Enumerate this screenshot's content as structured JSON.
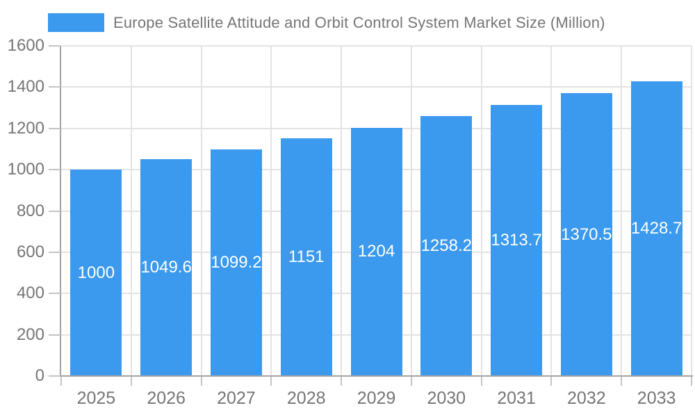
{
  "legend": {
    "label": "Europe Satellite Attitude and Orbit Control System Market Size (Million)"
  },
  "chart_data": {
    "type": "bar",
    "title": "Europe Satellite Attitude and Orbit Control System Market Size (Million)",
    "categories": [
      "2025",
      "2026",
      "2027",
      "2028",
      "2029",
      "2030",
      "2031",
      "2032",
      "2033"
    ],
    "values": [
      1000,
      1049.6,
      1099.2,
      1151,
      1204,
      1258.2,
      1313.7,
      1370.5,
      1428.7
    ],
    "bar_labels": [
      "1000",
      "1049.6",
      "1099.2",
      "1151",
      "1204",
      "1258.2",
      "1313.7",
      "1370.5",
      "1428.7"
    ],
    "xlabel": "",
    "ylabel": "",
    "ylim": [
      0,
      1600
    ],
    "ytick_step": 200,
    "ytick_labels": [
      "0",
      "200",
      "400",
      "600",
      "800",
      "1000",
      "1200",
      "1400",
      "1600"
    ],
    "grid": true,
    "legend_position": "top-left",
    "colors": {
      "bar": "#3b99ee",
      "grid": "#e3e3e3",
      "axis": "#a3a3a3",
      "tick": "#c4c4c4",
      "text": "#757575",
      "bar_label": "#ffffff",
      "background": "#ffffff"
    }
  }
}
